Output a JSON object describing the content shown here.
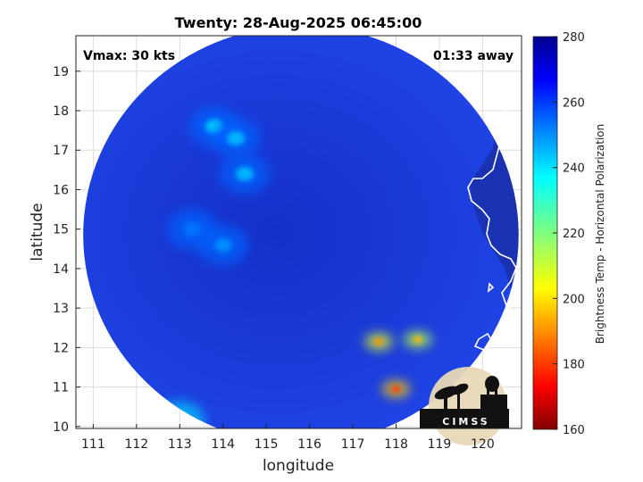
{
  "chart_data": {
    "type": "heatmap",
    "title": "Twenty: 28-Aug-2025 06:45:00",
    "xlabel": "longitude",
    "ylabel": "latitude",
    "xlim": [
      110.6,
      120.9
    ],
    "ylim": [
      9.95,
      19.9
    ],
    "x_ticks": [
      "111",
      "112",
      "113",
      "114",
      "115",
      "116",
      "117",
      "118",
      "119",
      "120"
    ],
    "y_ticks": [
      "10",
      "11",
      "12",
      "13",
      "14",
      "15",
      "16",
      "17",
      "18",
      "19"
    ],
    "grid": true,
    "annotations": {
      "vmax": "Vmax: 30 kts",
      "time_away": "01:33 away"
    },
    "colorbar": {
      "label": "Brightness Temp - Horizontal Polarization",
      "range": [
        160,
        280
      ],
      "ticks": [
        "160",
        "180",
        "200",
        "220",
        "240",
        "260",
        "280"
      ],
      "colormap": "jet"
    },
    "swath": {
      "center_lon": 115.8,
      "center_lat": 14.85,
      "radius_deg_lat": 5.3
    },
    "features": [
      {
        "lon": 113.8,
        "lat": 17.6,
        "temp": 242
      },
      {
        "lon": 114.3,
        "lat": 17.3,
        "temp": 245
      },
      {
        "lon": 114.5,
        "lat": 16.4,
        "temp": 245
      },
      {
        "lon": 114.0,
        "lat": 14.6,
        "temp": 250
      },
      {
        "lon": 113.3,
        "lat": 15.0,
        "temp": 253
      },
      {
        "lon": 117.6,
        "lat": 12.15,
        "temp": 190
      },
      {
        "lon": 118.5,
        "lat": 12.2,
        "temp": 195
      },
      {
        "lon": 118.0,
        "lat": 10.95,
        "temp": 180
      },
      {
        "lon": 113.0,
        "lat": 10.15,
        "temp": 225
      }
    ]
  },
  "logo": {
    "text": "CIMSS"
  },
  "colors": {
    "background_field": "#1f3fd8",
    "coast": "#ffffff",
    "outside_swath": "#ffffff"
  }
}
